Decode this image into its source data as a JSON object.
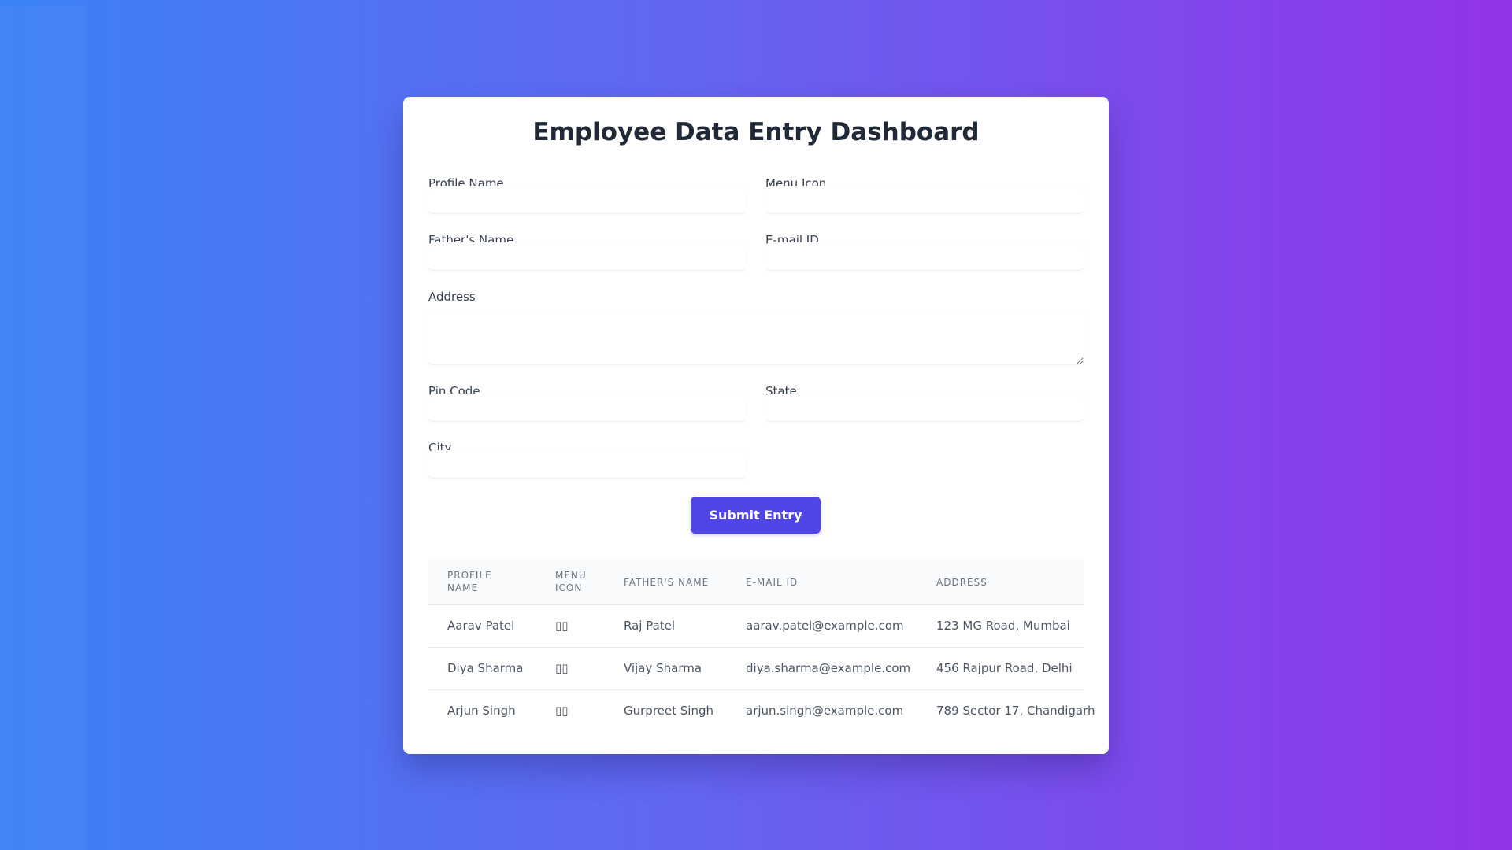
{
  "title": "Employee Data Entry Dashboard",
  "form": {
    "profile_name": {
      "label": "Profile Name",
      "value": ""
    },
    "menu_icon": {
      "label": "Menu Icon",
      "value": ""
    },
    "fathers_name": {
      "label": "Father's Name",
      "value": ""
    },
    "email": {
      "label": "E-mail ID",
      "value": ""
    },
    "address": {
      "label": "Address",
      "value": ""
    },
    "pin_code": {
      "label": "Pin Code",
      "value": ""
    },
    "state": {
      "label": "State",
      "value": ""
    },
    "city": {
      "label": "City",
      "value": ""
    },
    "submit_label": "Submit Entry"
  },
  "table": {
    "headers": [
      "PROFILE NAME",
      "MENU ICON",
      "FATHER'S NAME",
      "E-MAIL ID",
      "ADDRESS"
    ],
    "rows": [
      [
        "Aarav Patel",
        "▯▯",
        "Raj Patel",
        "aarav.patel@example.com",
        "123 MG Road, Mumbai"
      ],
      [
        "Diya Sharma",
        "▯▯",
        "Vijay Sharma",
        "diya.sharma@example.com",
        "456 Rajpur Road, Delhi"
      ],
      [
        "Arjun Singh",
        "▯▯",
        "Gurpreet Singh",
        "arjun.singh@example.com",
        "789 Sector 17, Chandigarh"
      ]
    ]
  },
  "colors": {
    "accent": "#4f46e5",
    "bg_start": "#3b82f6",
    "bg_end": "#9333ea",
    "title": "#1f2937"
  }
}
